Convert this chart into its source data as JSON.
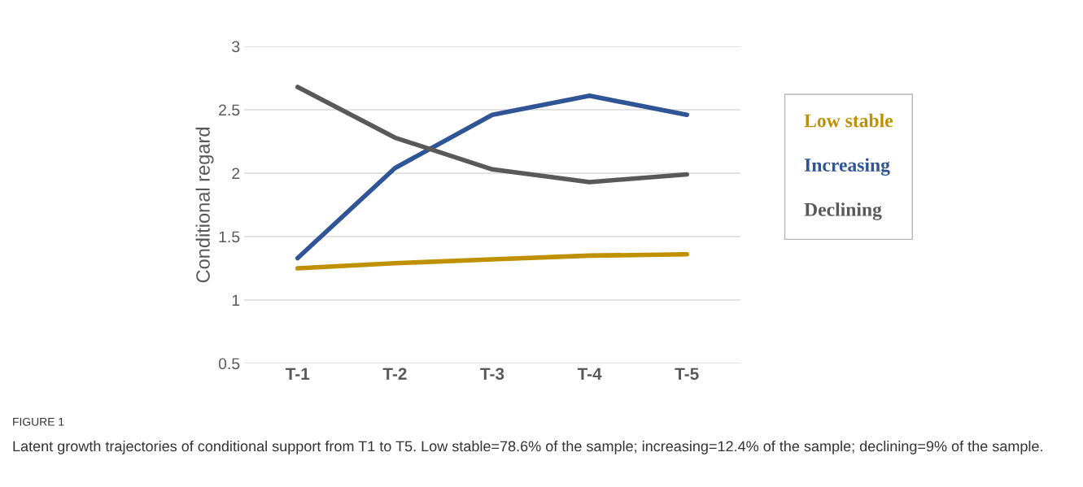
{
  "chart_data": {
    "type": "line",
    "categories": [
      "T-1",
      "T-2",
      "T-3",
      "T-4",
      "T-5"
    ],
    "ylabel": "Conditional regard",
    "series": [
      {
        "name": "Low stable",
        "color": "#bf9000",
        "values": [
          1.25,
          1.29,
          1.32,
          1.35,
          1.36
        ]
      },
      {
        "name": "Increasing",
        "color": "#2f5597",
        "values": [
          1.33,
          2.04,
          2.46,
          2.61,
          2.46
        ]
      },
      {
        "name": "Declining",
        "color": "#595959",
        "values": [
          2.68,
          2.28,
          2.03,
          1.93,
          1.99
        ]
      }
    ],
    "ylim": [
      0.5,
      3
    ],
    "yticks": [
      0.5,
      1,
      1.5,
      2,
      2.5,
      3
    ],
    "grid": "y",
    "legend": "right",
    "marker": "none",
    "line_style": "solid",
    "annotations": [
      "FIGURE 1",
      "Latent growth trajectories of conditional support from T1 to T5. Low stable=78.6% of the sample; increasing=12.4% of the sample; declining=9% of the sample."
    ]
  }
}
